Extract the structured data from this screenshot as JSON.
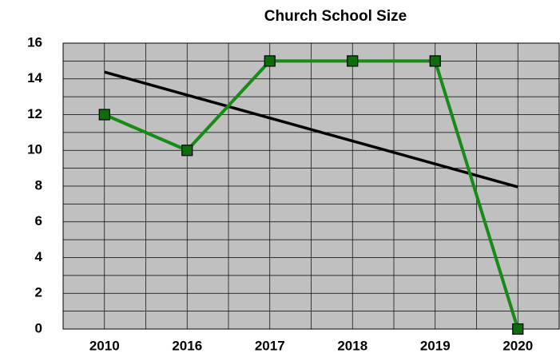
{
  "chart_data": {
    "type": "line",
    "title": "Church School Size",
    "categories": [
      "2010",
      "2016",
      "2017",
      "2018",
      "2019",
      "2020"
    ],
    "series": [
      {
        "color": "#178a17",
        "marker_color": "#0b6e0b",
        "values": [
          12,
          10,
          15,
          15,
          15,
          0
        ]
      }
    ],
    "trendline": {
      "kind": "linear",
      "color": "#000000"
    },
    "ylim": [
      0,
      16
    ],
    "yticks": [
      0,
      2,
      4,
      6,
      8,
      10,
      12,
      14,
      16
    ],
    "grid": true,
    "minor_grid": true,
    "plot_background": "#c0c0c0"
  }
}
